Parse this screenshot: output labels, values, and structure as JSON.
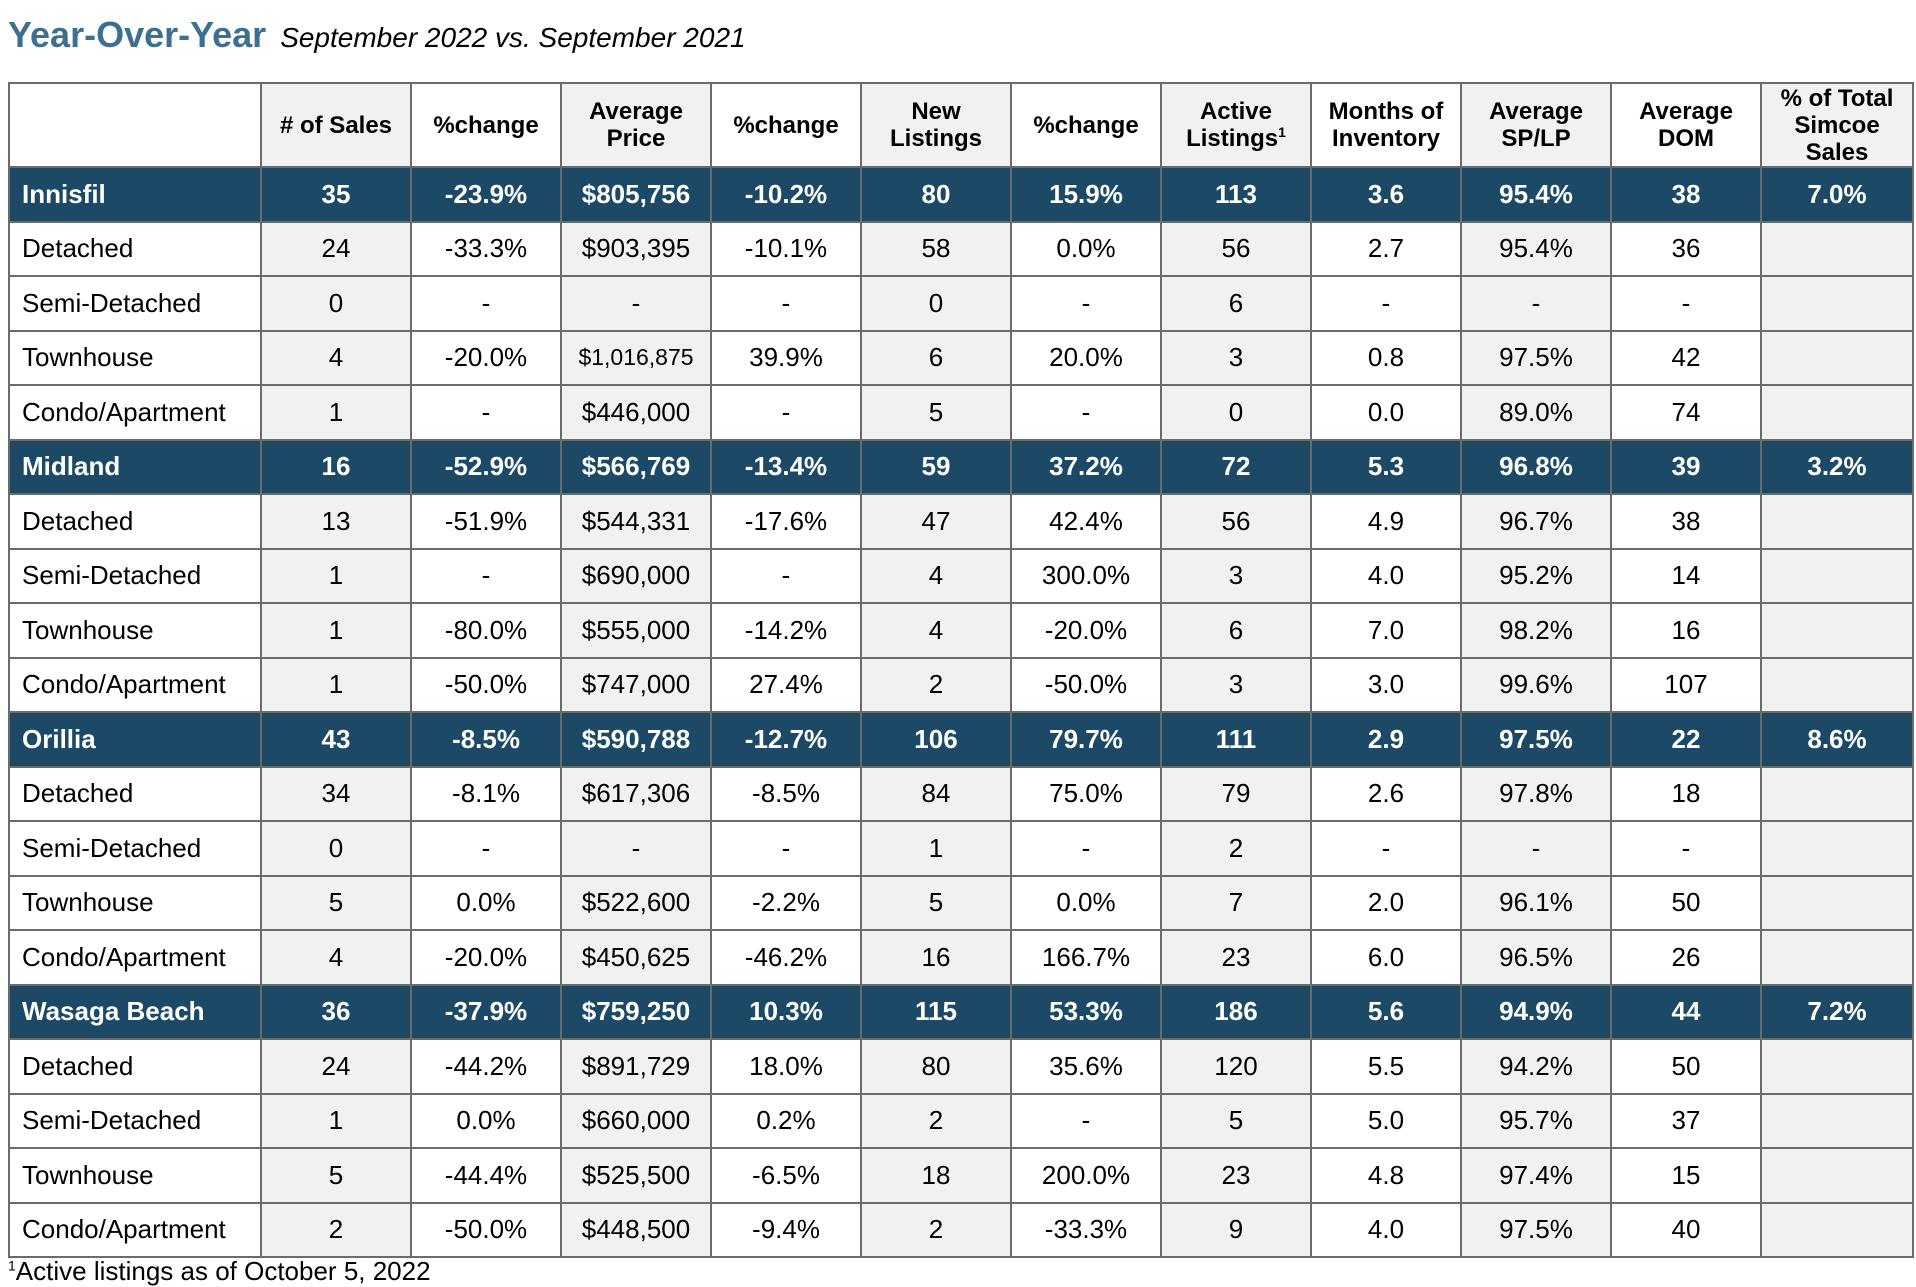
{
  "title": {
    "main": "Year-Over-Year",
    "sub": "September 2022 vs. September 2021"
  },
  "headers": [
    "",
    "# of Sales",
    "%change",
    "Average Price",
    "%change",
    "New Listings",
    "%change",
    "Active Listings",
    "Months of Inventory",
    "Average SP/LP",
    "Average DOM",
    "% of Total Simcoe Sales"
  ],
  "header_superscript": "1",
  "rows": [
    {
      "type": "area",
      "cells": [
        "Innisfil",
        "35",
        "-23.9%",
        "$805,756",
        "-10.2%",
        "80",
        "15.9%",
        "113",
        "3.6",
        "95.4%",
        "38",
        "7.0%"
      ]
    },
    {
      "type": "sub",
      "cells": [
        "Detached",
        "24",
        "-33.3%",
        "$903,395",
        "-10.1%",
        "58",
        "0.0%",
        "56",
        "2.7",
        "95.4%",
        "36",
        ""
      ]
    },
    {
      "type": "sub",
      "cells": [
        "Semi-Detached",
        "0",
        "-",
        "-",
        "-",
        "0",
        "-",
        "6",
        "-",
        "-",
        "-",
        ""
      ]
    },
    {
      "type": "sub",
      "cells": [
        "Townhouse",
        "4",
        "-20.0%",
        "$1,016,875",
        "39.9%",
        "6",
        "20.0%",
        "3",
        "0.8",
        "97.5%",
        "42",
        ""
      ]
    },
    {
      "type": "sub",
      "cells": [
        "Condo/Apartment",
        "1",
        "-",
        "$446,000",
        "-",
        "5",
        "-",
        "0",
        "0.0",
        "89.0%",
        "74",
        ""
      ]
    },
    {
      "type": "area",
      "cells": [
        "Midland",
        "16",
        "-52.9%",
        "$566,769",
        "-13.4%",
        "59",
        "37.2%",
        "72",
        "5.3",
        "96.8%",
        "39",
        "3.2%"
      ]
    },
    {
      "type": "sub",
      "cells": [
        "Detached",
        "13",
        "-51.9%",
        "$544,331",
        "-17.6%",
        "47",
        "42.4%",
        "56",
        "4.9",
        "96.7%",
        "38",
        ""
      ]
    },
    {
      "type": "sub",
      "cells": [
        "Semi-Detached",
        "1",
        "-",
        "$690,000",
        "-",
        "4",
        "300.0%",
        "3",
        "4.0",
        "95.2%",
        "14",
        ""
      ]
    },
    {
      "type": "sub",
      "cells": [
        "Townhouse",
        "1",
        "-80.0%",
        "$555,000",
        "-14.2%",
        "4",
        "-20.0%",
        "6",
        "7.0",
        "98.2%",
        "16",
        ""
      ]
    },
    {
      "type": "sub",
      "cells": [
        "Condo/Apartment",
        "1",
        "-50.0%",
        "$747,000",
        "27.4%",
        "2",
        "-50.0%",
        "3",
        "3.0",
        "99.6%",
        "107",
        ""
      ]
    },
    {
      "type": "area",
      "cells": [
        "Orillia",
        "43",
        "-8.5%",
        "$590,788",
        "-12.7%",
        "106",
        "79.7%",
        "111",
        "2.9",
        "97.5%",
        "22",
        "8.6%"
      ]
    },
    {
      "type": "sub",
      "cells": [
        "Detached",
        "34",
        "-8.1%",
        "$617,306",
        "-8.5%",
        "84",
        "75.0%",
        "79",
        "2.6",
        "97.8%",
        "18",
        ""
      ]
    },
    {
      "type": "sub",
      "cells": [
        "Semi-Detached",
        "0",
        "-",
        "-",
        "-",
        "1",
        "-",
        "2",
        "-",
        "-",
        "-",
        ""
      ]
    },
    {
      "type": "sub",
      "cells": [
        "Townhouse",
        "5",
        "0.0%",
        "$522,600",
        "-2.2%",
        "5",
        "0.0%",
        "7",
        "2.0",
        "96.1%",
        "50",
        ""
      ]
    },
    {
      "type": "sub",
      "cells": [
        "Condo/Apartment",
        "4",
        "-20.0%",
        "$450,625",
        "-46.2%",
        "16",
        "166.7%",
        "23",
        "6.0",
        "96.5%",
        "26",
        ""
      ]
    },
    {
      "type": "area",
      "cells": [
        "Wasaga Beach",
        "36",
        "-37.9%",
        "$759,250",
        "10.3%",
        "115",
        "53.3%",
        "186",
        "5.6",
        "94.9%",
        "44",
        "7.2%"
      ]
    },
    {
      "type": "sub",
      "cells": [
        "Detached",
        "24",
        "-44.2%",
        "$891,729",
        "18.0%",
        "80",
        "35.6%",
        "120",
        "5.5",
        "94.2%",
        "50",
        ""
      ]
    },
    {
      "type": "sub",
      "cells": [
        "Semi-Detached",
        "1",
        "0.0%",
        "$660,000",
        "0.2%",
        "2",
        "-",
        "5",
        "5.0",
        "95.7%",
        "37",
        ""
      ]
    },
    {
      "type": "sub",
      "cells": [
        "Townhouse",
        "5",
        "-44.4%",
        "$525,500",
        "-6.5%",
        "18",
        "200.0%",
        "23",
        "4.8",
        "97.4%",
        "15",
        ""
      ]
    },
    {
      "type": "sub",
      "cells": [
        "Condo/Apartment",
        "2",
        "-50.0%",
        "$448,500",
        "-9.4%",
        "2",
        "-33.3%",
        "9",
        "4.0",
        "97.5%",
        "40",
        ""
      ]
    }
  ],
  "footnote": {
    "marker": "1",
    "text": "Active listings as of October 5, 2022"
  }
}
